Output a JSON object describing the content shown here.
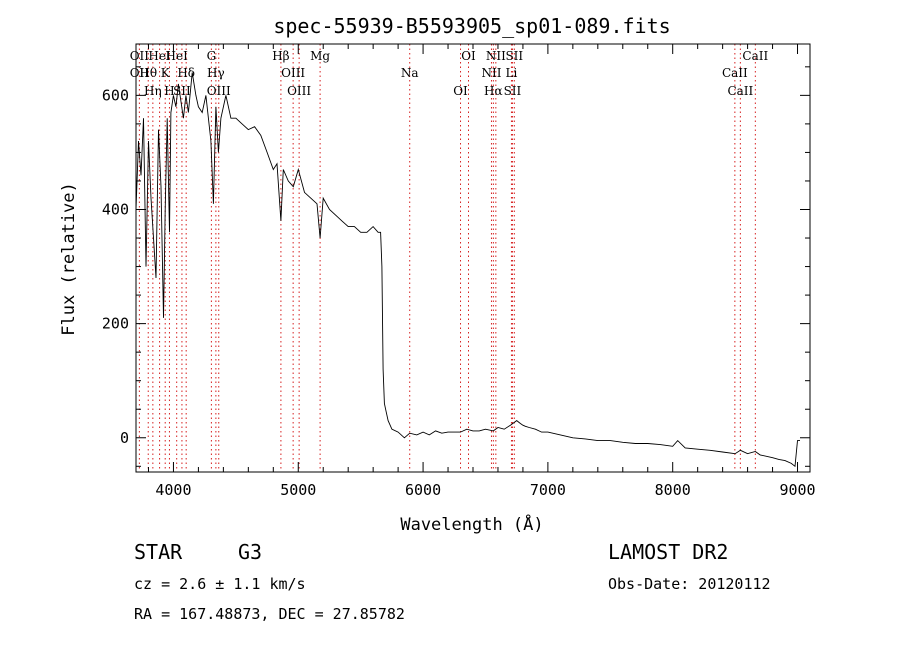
{
  "chart_data": {
    "type": "line",
    "title": "spec-55939-B5593905_sp01-089.fits",
    "xlabel": "Wavelength (Å)",
    "ylabel": "Flux (relative)",
    "xlim": [
      3700,
      9100
    ],
    "ylim": [
      -60,
      690
    ],
    "xticks": [
      4000,
      5000,
      6000,
      7000,
      8000,
      9000
    ],
    "yticks": [
      0,
      200,
      400,
      600
    ],
    "grid": false,
    "series": [
      {
        "x": [
          3700,
          3720,
          3740,
          3760,
          3780,
          3800,
          3820,
          3840,
          3860,
          3880,
          3900,
          3920,
          3934,
          3950,
          3968,
          3980,
          4000,
          4020,
          4040,
          4060,
          4080,
          4100,
          4120,
          4150,
          4180,
          4200,
          4230,
          4260,
          4300,
          4320,
          4340,
          4360,
          4380,
          4420,
          4460,
          4500,
          4550,
          4600,
          4650,
          4700,
          4750,
          4800,
          4830,
          4861,
          4880,
          4920,
          4960,
          5000,
          5050,
          5100,
          5150,
          5175,
          5200,
          5250,
          5300,
          5350,
          5400,
          5450,
          5500,
          5550,
          5600,
          5640,
          5660,
          5670,
          5680,
          5690,
          5700,
          5720,
          5750,
          5800,
          5850,
          5893,
          5950,
          6000,
          6050,
          6100,
          6150,
          6200,
          6250,
          6300,
          6350,
          6400,
          6450,
          6500,
          6563,
          6600,
          6650,
          6700,
          6750,
          6780,
          6800,
          6820,
          6850,
          6900,
          6950,
          7000,
          7100,
          7200,
          7300,
          7400,
          7500,
          7600,
          7700,
          7800,
          7900,
          8000,
          8040,
          8100,
          8200,
          8300,
          8400,
          8500,
          8542,
          8600,
          8662,
          8700,
          8800,
          8850,
          8900,
          8950,
          8980,
          9000,
          9020
        ],
        "y": [
          400,
          520,
          460,
          560,
          300,
          520,
          420,
          350,
          280,
          540,
          440,
          210,
          400,
          560,
          360,
          570,
          600,
          580,
          620,
          590,
          560,
          600,
          570,
          640,
          600,
          580,
          570,
          600,
          520,
          410,
          580,
          500,
          560,
          600,
          560,
          560,
          550,
          540,
          545,
          530,
          500,
          470,
          480,
          380,
          470,
          450,
          440,
          470,
          430,
          420,
          410,
          350,
          420,
          400,
          390,
          380,
          370,
          370,
          360,
          360,
          370,
          360,
          360,
          300,
          120,
          60,
          50,
          30,
          15,
          10,
          0,
          8,
          5,
          10,
          5,
          12,
          8,
          10,
          10,
          10,
          15,
          12,
          12,
          15,
          12,
          18,
          15,
          22,
          30,
          25,
          22,
          20,
          18,
          15,
          10,
          10,
          5,
          0,
          -2,
          -5,
          -5,
          -8,
          -10,
          -10,
          -12,
          -15,
          -5,
          -18,
          -20,
          -22,
          -25,
          -28,
          -22,
          -28,
          -24,
          -30,
          -35,
          -38,
          -40,
          -45,
          -50,
          -5,
          -5
        ]
      }
    ],
    "lines": [
      {
        "x": 3727,
        "labels": [
          "OII",
          "OII"
        ]
      },
      {
        "x": 3798,
        "labels": [
          "Hθ"
        ]
      },
      {
        "x": 3835,
        "labels": [
          "Hη"
        ]
      },
      {
        "x": 3889,
        "labels": [
          "HeI"
        ]
      },
      {
        "x": 3934,
        "labels": [
          "K"
        ]
      },
      {
        "x": 3968,
        "labels": [
          "H"
        ]
      },
      {
        "x": 4026,
        "labels": [
          "HeI"
        ]
      },
      {
        "x": 4102,
        "labels": [
          "Hδ"
        ]
      },
      {
        "x": 4068,
        "labels": [
          "SII"
        ]
      },
      {
        "x": 4304,
        "labels": [
          "G"
        ]
      },
      {
        "x": 4340,
        "labels": [
          "Hγ"
        ]
      },
      {
        "x": 4363,
        "labels": [
          "OIII"
        ]
      },
      {
        "x": 4861,
        "labels": [
          "Hβ"
        ]
      },
      {
        "x": 4959,
        "labels": [
          "OIII"
        ]
      },
      {
        "x": 5007,
        "labels": [
          "OIII"
        ]
      },
      {
        "x": 5175,
        "labels": [
          "Mg"
        ]
      },
      {
        "x": 5893,
        "labels": [
          "Na"
        ]
      },
      {
        "x": 6300,
        "labels": [
          "OI"
        ]
      },
      {
        "x": 6364,
        "labels": [
          "OI"
        ]
      },
      {
        "x": 6548,
        "labels": [
          "NII"
        ]
      },
      {
        "x": 6563,
        "labels": [
          "Hα"
        ]
      },
      {
        "x": 6583,
        "labels": [
          "NII"
        ]
      },
      {
        "x": 6708,
        "labels": [
          "Li"
        ]
      },
      {
        "x": 6716,
        "labels": [
          "SII"
        ]
      },
      {
        "x": 6731,
        "labels": [
          "SII"
        ]
      },
      {
        "x": 8498,
        "labels": [
          "CaII"
        ]
      },
      {
        "x": 8542,
        "labels": [
          "CaII"
        ]
      },
      {
        "x": 8662,
        "labels": [
          "CaII"
        ]
      }
    ],
    "line_color": "#d62020",
    "spectrum_color": "#000000"
  },
  "info": {
    "class": "STAR",
    "subclass": "G3",
    "survey": "LAMOST DR2",
    "cz": "cz = 2.6 ± 1.1 km/s",
    "obs_date": "Obs-Date: 20120112",
    "radec": "RA = 167.48873, DEC =  27.85782"
  }
}
